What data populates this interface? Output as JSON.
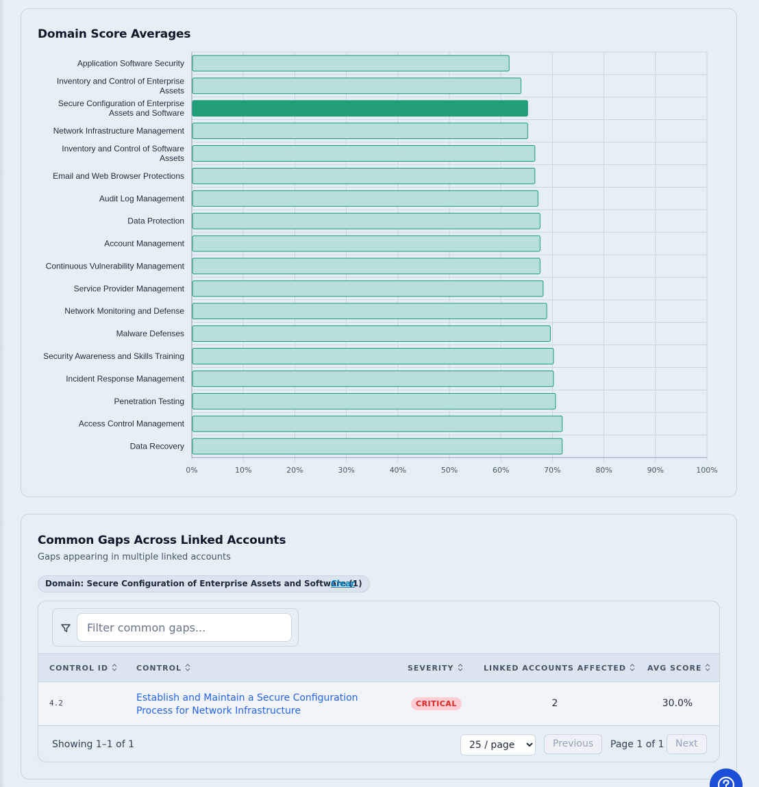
{
  "chart_card": {
    "title": "Domain Score Averages"
  },
  "chart_data": {
    "type": "bar",
    "orientation": "horizontal",
    "title": "Domain Score Averages",
    "categories": [
      "Application Software Security",
      "Inventory and Control of Enterprise Assets",
      "Secure Configuration of Enterprise Assets and Software",
      "Network Infrastructure Management",
      "Inventory and Control of Software Assets",
      "Email and Web Browser Protections",
      "Audit Log Management",
      "Data Protection",
      "Account Management",
      "Continuous Vulnerability Management",
      "Service Provider Management",
      "Network Monitoring and Defense",
      "Malware Defenses",
      "Security Awareness and Skills Training",
      "Incident Response Management",
      "Penetration Testing",
      "Access Control Management",
      "Data Recovery"
    ],
    "values": [
      61.6,
      63.9,
      65.2,
      65.2,
      66.6,
      66.6,
      67.2,
      67.6,
      67.6,
      67.6,
      68.2,
      68.9,
      69.6,
      70.2,
      70.2,
      70.6,
      71.9,
      71.9
    ],
    "highlighted_category": "Secure Configuration of Enterprise Assets and Software",
    "xlim": [
      0,
      100
    ],
    "x_ticks": [
      "0%",
      "10%",
      "20%",
      "30%",
      "40%",
      "50%",
      "60%",
      "70%",
      "80%",
      "90%",
      "100%"
    ],
    "grid": true,
    "colors": {
      "bar_fill": "#b9dfdd",
      "bar_stroke": "#1c9a77",
      "highlight_fill": "#1f9e77",
      "grid": "#cbd5e1"
    }
  },
  "gaps_card": {
    "title": "Common Gaps Across Linked Accounts",
    "subtitle": "Gaps appearing in multiple linked accounts",
    "filter_chip": "Domain: Secure Configuration of Enterprise Assets and Software (1)",
    "clear_label": "Clear",
    "search_placeholder": "Filter common gaps...",
    "columns": [
      "CONTROL ID",
      "CONTROL",
      "SEVERITY",
      "LINKED ACCOUNTS AFFECTED",
      "AVG SCORE"
    ],
    "rows": [
      {
        "control_id": "4.2",
        "control": "Establish and Maintain a Secure Configuration Process for Network Infrastructure",
        "severity": "CRITICAL",
        "linked_accounts": "2",
        "avg_score": "30.0%"
      }
    ],
    "showing": "Showing 1–1 of 1",
    "page_size": "25 / page",
    "page_size_options": [
      "25 / page"
    ],
    "previous_label": "Previous",
    "page_info": "Page 1 of 1",
    "next_label": "Next"
  },
  "help_icon": "question-circle-icon"
}
